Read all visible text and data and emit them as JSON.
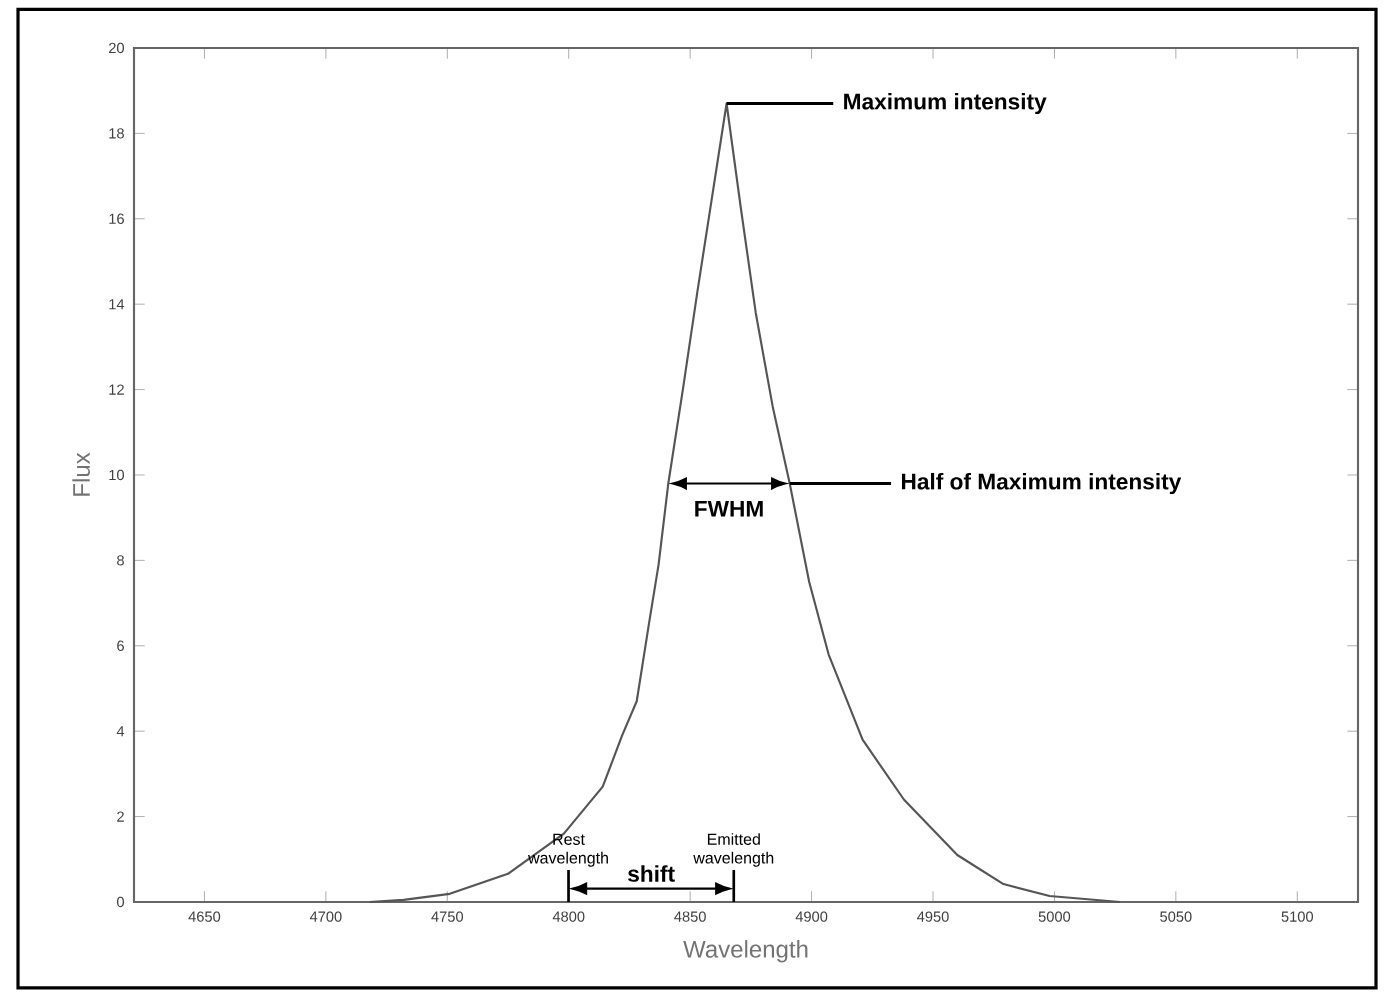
{
  "chart_data": {
    "type": "line",
    "xlabel": "Wavelength",
    "ylabel": "Flux",
    "xlim": [
      4621,
      5125
    ],
    "ylim": [
      0,
      20
    ],
    "xticks": [
      4650,
      4700,
      4750,
      4800,
      4850,
      4900,
      4950,
      5000,
      5050,
      5100
    ],
    "yticks": [
      0,
      2,
      4,
      6,
      8,
      10,
      12,
      14,
      16,
      18,
      20
    ],
    "series": [
      {
        "color": "#555555",
        "x": [
          4718,
          4732,
          4751,
          4775,
          4798,
          4814,
          4822,
          4828,
          4833,
          4837,
          4841,
          4847,
          4853,
          4859,
          4865,
          4871,
          4877,
          4884,
          4891,
          4899,
          4907,
          4921,
          4938,
          4960,
          4979,
          4998,
          5027
        ],
        "values": [
          0,
          0.05,
          0.19,
          0.66,
          1.6,
          2.7,
          3.9,
          4.7,
          6.5,
          7.9,
          9.8,
          12.0,
          14.3,
          16.5,
          18.7,
          16.2,
          13.8,
          11.6,
          9.8,
          7.5,
          5.8,
          3.8,
          2.4,
          1.1,
          0.42,
          0.14,
          0
        ]
      }
    ],
    "annotations": [
      {
        "text": "Maximum intensity",
        "x": 4865,
        "y": 18.7
      },
      {
        "text": "Half of Maximum intensity",
        "x": 4891,
        "y": 9.8
      },
      "FWHM",
      "Rest wavelength",
      "Emitted wavelength",
      "shift"
    ]
  }
}
